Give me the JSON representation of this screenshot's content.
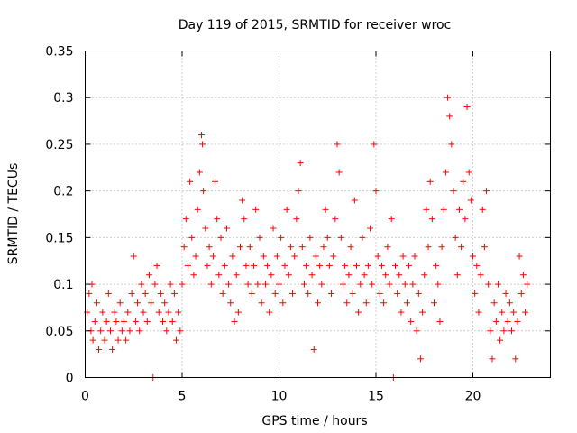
{
  "chart_data": {
    "type": "scatter",
    "title": "Day 119 of 2015, SRMTID for receiver wroc",
    "xlabel": "GPS time / hours",
    "ylabel": "SRMTID / TECUs",
    "xlim": [
      0,
      24
    ],
    "ylim": [
      0,
      0.35
    ],
    "x_ticks": [
      0,
      5,
      10,
      15,
      20
    ],
    "x_tick_labels": [
      "0",
      "5",
      "10",
      "15",
      "20"
    ],
    "y_ticks": [
      0,
      0.05,
      0.1,
      0.15,
      0.2,
      0.25,
      0.3,
      0.35
    ],
    "y_tick_labels": [
      "0",
      "0.05",
      "0.1",
      "0.15",
      "0.2",
      "0.25",
      "0.3",
      "0.35"
    ],
    "grid": true,
    "marker": "+",
    "color": "#ff0000",
    "series": [
      {
        "name": "SRMTID",
        "points": [
          [
            0.1,
            0.07
          ],
          [
            0.2,
            0.09
          ],
          [
            0.3,
            0.05
          ],
          [
            0.35,
            0.1
          ],
          [
            0.4,
            0.04
          ],
          [
            0.5,
            0.06
          ],
          [
            0.6,
            0.08
          ],
          [
            0.7,
            0.03
          ],
          [
            0.8,
            0.05
          ],
          [
            0.9,
            0.07
          ],
          [
            1.0,
            0.04
          ],
          [
            1.1,
            0.06
          ],
          [
            1.2,
            0.09
          ],
          [
            1.3,
            0.05
          ],
          [
            1.4,
            0.03
          ],
          [
            1.5,
            0.07
          ],
          [
            1.6,
            0.06
          ],
          [
            1.7,
            0.04
          ],
          [
            1.8,
            0.08
          ],
          [
            1.9,
            0.05
          ],
          [
            2.0,
            0.06
          ],
          [
            2.1,
            0.04
          ],
          [
            2.2,
            0.07
          ],
          [
            2.3,
            0.05
          ],
          [
            2.4,
            0.09
          ],
          [
            2.5,
            0.13
          ],
          [
            2.6,
            0.06
          ],
          [
            2.7,
            0.08
          ],
          [
            2.8,
            0.05
          ],
          [
            2.9,
            0.1
          ],
          [
            3.0,
            0.07
          ],
          [
            3.1,
            0.09
          ],
          [
            3.2,
            0.06
          ],
          [
            3.3,
            0.11
          ],
          [
            3.4,
            0.08
          ],
          [
            3.5,
            0.0
          ],
          [
            3.6,
            0.1
          ],
          [
            3.7,
            0.12
          ],
          [
            3.8,
            0.07
          ],
          [
            3.9,
            0.09
          ],
          [
            4.0,
            0.06
          ],
          [
            4.1,
            0.08
          ],
          [
            4.2,
            0.05
          ],
          [
            4.3,
            0.07
          ],
          [
            4.4,
            0.1
          ],
          [
            4.5,
            0.06
          ],
          [
            4.6,
            0.09
          ],
          [
            4.7,
            0.04
          ],
          [
            4.8,
            0.07
          ],
          [
            4.9,
            0.05
          ],
          [
            5.0,
            0.1
          ],
          [
            5.1,
            0.14
          ],
          [
            5.2,
            0.17
          ],
          [
            5.3,
            0.12
          ],
          [
            5.4,
            0.21
          ],
          [
            5.5,
            0.15
          ],
          [
            5.6,
            0.11
          ],
          [
            5.7,
            0.13
          ],
          [
            5.8,
            0.18
          ],
          [
            5.9,
            0.22
          ],
          [
            6.0,
            0.26
          ],
          [
            6.05,
            0.25
          ],
          [
            6.1,
            0.2
          ],
          [
            6.2,
            0.16
          ],
          [
            6.3,
            0.12
          ],
          [
            6.4,
            0.14
          ],
          [
            6.5,
            0.1
          ],
          [
            6.6,
            0.13
          ],
          [
            6.7,
            0.21
          ],
          [
            6.8,
            0.17
          ],
          [
            6.9,
            0.11
          ],
          [
            7.0,
            0.15
          ],
          [
            7.1,
            0.09
          ],
          [
            7.2,
            0.12
          ],
          [
            7.3,
            0.16
          ],
          [
            7.4,
            0.1
          ],
          [
            7.5,
            0.08
          ],
          [
            7.6,
            0.13
          ],
          [
            7.7,
            0.06
          ],
          [
            7.8,
            0.11
          ],
          [
            7.9,
            0.07
          ],
          [
            8.0,
            0.14
          ],
          [
            8.1,
            0.19
          ],
          [
            8.2,
            0.17
          ],
          [
            8.3,
            0.12
          ],
          [
            8.4,
            0.1
          ],
          [
            8.5,
            0.14
          ],
          [
            8.6,
            0.09
          ],
          [
            8.7,
            0.12
          ],
          [
            8.8,
            0.18
          ],
          [
            8.9,
            0.1
          ],
          [
            9.0,
            0.15
          ],
          [
            9.1,
            0.08
          ],
          [
            9.2,
            0.13
          ],
          [
            9.3,
            0.1
          ],
          [
            9.4,
            0.12
          ],
          [
            9.5,
            0.07
          ],
          [
            9.6,
            0.11
          ],
          [
            9.7,
            0.16
          ],
          [
            9.8,
            0.09
          ],
          [
            9.9,
            0.13
          ],
          [
            10.0,
            0.1
          ],
          [
            10.1,
            0.15
          ],
          [
            10.2,
            0.08
          ],
          [
            10.3,
            0.12
          ],
          [
            10.4,
            0.18
          ],
          [
            10.5,
            0.11
          ],
          [
            10.6,
            0.14
          ],
          [
            10.7,
            0.09
          ],
          [
            10.8,
            0.13
          ],
          [
            10.9,
            0.17
          ],
          [
            11.0,
            0.2
          ],
          [
            11.1,
            0.23
          ],
          [
            11.2,
            0.14
          ],
          [
            11.3,
            0.1
          ],
          [
            11.4,
            0.12
          ],
          [
            11.5,
            0.09
          ],
          [
            11.6,
            0.15
          ],
          [
            11.7,
            0.11
          ],
          [
            11.8,
            0.03
          ],
          [
            11.9,
            0.13
          ],
          [
            12.0,
            0.08
          ],
          [
            12.1,
            0.12
          ],
          [
            12.2,
            0.1
          ],
          [
            12.3,
            0.14
          ],
          [
            12.4,
            0.18
          ],
          [
            12.5,
            0.15
          ],
          [
            12.6,
            0.12
          ],
          [
            12.7,
            0.09
          ],
          [
            12.8,
            0.13
          ],
          [
            12.9,
            0.17
          ],
          [
            13.0,
            0.25
          ],
          [
            13.1,
            0.22
          ],
          [
            13.2,
            0.15
          ],
          [
            13.3,
            0.1
          ],
          [
            13.4,
            0.12
          ],
          [
            13.5,
            0.08
          ],
          [
            13.6,
            0.11
          ],
          [
            13.7,
            0.14
          ],
          [
            13.8,
            0.09
          ],
          [
            13.9,
            0.19
          ],
          [
            14.0,
            0.12
          ],
          [
            14.1,
            0.07
          ],
          [
            14.2,
            0.1
          ],
          [
            14.3,
            0.15
          ],
          [
            14.4,
            0.11
          ],
          [
            14.5,
            0.08
          ],
          [
            14.6,
            0.12
          ],
          [
            14.7,
            0.16
          ],
          [
            14.8,
            0.1
          ],
          [
            14.9,
            0.25
          ],
          [
            15.0,
            0.2
          ],
          [
            15.1,
            0.13
          ],
          [
            15.2,
            0.09
          ],
          [
            15.3,
            0.12
          ],
          [
            15.4,
            0.08
          ],
          [
            15.5,
            0.11
          ],
          [
            15.6,
            0.14
          ],
          [
            15.7,
            0.1
          ],
          [
            15.8,
            0.17
          ],
          [
            15.9,
            0.0
          ],
          [
            16.0,
            0.12
          ],
          [
            16.1,
            0.09
          ],
          [
            16.2,
            0.11
          ],
          [
            16.3,
            0.07
          ],
          [
            16.4,
            0.13
          ],
          [
            16.5,
            0.1
          ],
          [
            16.6,
            0.08
          ],
          [
            16.7,
            0.12
          ],
          [
            16.8,
            0.06
          ],
          [
            16.9,
            0.1
          ],
          [
            17.0,
            0.13
          ],
          [
            17.1,
            0.05
          ],
          [
            17.2,
            0.09
          ],
          [
            17.3,
            0.02
          ],
          [
            17.4,
            0.07
          ],
          [
            17.5,
            0.11
          ],
          [
            17.6,
            0.18
          ],
          [
            17.7,
            0.14
          ],
          [
            17.8,
            0.21
          ],
          [
            17.9,
            0.17
          ],
          [
            18.0,
            0.08
          ],
          [
            18.1,
            0.12
          ],
          [
            18.2,
            0.1
          ],
          [
            18.3,
            0.06
          ],
          [
            18.4,
            0.14
          ],
          [
            18.5,
            0.18
          ],
          [
            18.6,
            0.22
          ],
          [
            18.7,
            0.3
          ],
          [
            18.8,
            0.28
          ],
          [
            18.9,
            0.25
          ],
          [
            19.0,
            0.2
          ],
          [
            19.1,
            0.15
          ],
          [
            19.2,
            0.11
          ],
          [
            19.3,
            0.18
          ],
          [
            19.4,
            0.14
          ],
          [
            19.5,
            0.21
          ],
          [
            19.6,
            0.17
          ],
          [
            19.7,
            0.29
          ],
          [
            19.8,
            0.22
          ],
          [
            19.9,
            0.19
          ],
          [
            20.0,
            0.13
          ],
          [
            20.1,
            0.09
          ],
          [
            20.2,
            0.12
          ],
          [
            20.3,
            0.07
          ],
          [
            20.4,
            0.11
          ],
          [
            20.5,
            0.18
          ],
          [
            20.6,
            0.14
          ],
          [
            20.7,
            0.2
          ],
          [
            20.8,
            0.1
          ],
          [
            20.9,
            0.05
          ],
          [
            21.0,
            0.02
          ],
          [
            21.1,
            0.08
          ],
          [
            21.2,
            0.06
          ],
          [
            21.3,
            0.1
          ],
          [
            21.4,
            0.04
          ],
          [
            21.5,
            0.07
          ],
          [
            21.6,
            0.05
          ],
          [
            21.7,
            0.09
          ],
          [
            21.8,
            0.06
          ],
          [
            21.9,
            0.08
          ],
          [
            22.0,
            0.05
          ],
          [
            22.1,
            0.07
          ],
          [
            22.2,
            0.02
          ],
          [
            22.3,
            0.06
          ],
          [
            22.4,
            0.13
          ],
          [
            22.5,
            0.09
          ],
          [
            22.6,
            0.11
          ],
          [
            22.7,
            0.07
          ],
          [
            22.8,
            0.1
          ]
        ]
      }
    ]
  }
}
